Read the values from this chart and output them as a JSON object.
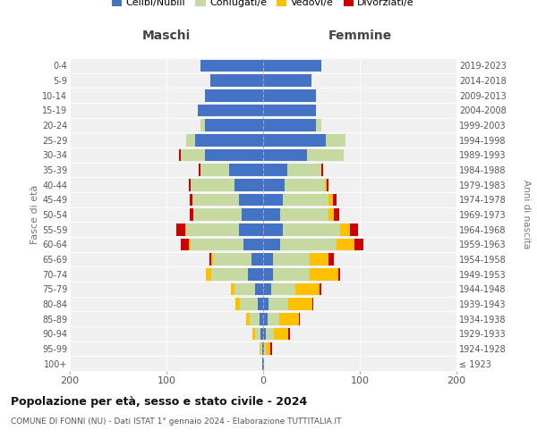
{
  "age_groups": [
    "100+",
    "95-99",
    "90-94",
    "85-89",
    "80-84",
    "75-79",
    "70-74",
    "65-69",
    "60-64",
    "55-59",
    "50-54",
    "45-49",
    "40-44",
    "35-39",
    "30-34",
    "25-29",
    "20-24",
    "15-19",
    "10-14",
    "5-9",
    "0-4"
  ],
  "birth_years": [
    "≤ 1923",
    "1924-1928",
    "1929-1933",
    "1934-1938",
    "1939-1943",
    "1944-1948",
    "1949-1953",
    "1954-1958",
    "1959-1963",
    "1964-1968",
    "1969-1973",
    "1974-1978",
    "1979-1983",
    "1984-1988",
    "1989-1993",
    "1994-1998",
    "1999-2003",
    "2004-2008",
    "2009-2013",
    "2014-2018",
    "2019-2023"
  ],
  "maschi": {
    "celibi": [
      1,
      1,
      3,
      4,
      6,
      8,
      16,
      12,
      20,
      25,
      22,
      25,
      30,
      35,
      60,
      70,
      60,
      68,
      60,
      55,
      65
    ],
    "coniugati": [
      0,
      2,
      5,
      10,
      18,
      22,
      38,
      40,
      55,
      55,
      50,
      48,
      45,
      30,
      25,
      10,
      5,
      0,
      0,
      0,
      0
    ],
    "vedovi": [
      0,
      1,
      3,
      4,
      5,
      3,
      5,
      2,
      2,
      1,
      0,
      0,
      0,
      0,
      0,
      0,
      0,
      0,
      0,
      0,
      0
    ],
    "divorziati": [
      0,
      0,
      0,
      0,
      0,
      0,
      0,
      2,
      8,
      9,
      4,
      3,
      2,
      2,
      2,
      0,
      0,
      0,
      0,
      0,
      0
    ]
  },
  "femmine": {
    "nubili": [
      1,
      1,
      3,
      5,
      6,
      8,
      10,
      10,
      18,
      20,
      18,
      20,
      22,
      25,
      45,
      65,
      55,
      55,
      55,
      50,
      60
    ],
    "coniugate": [
      0,
      2,
      8,
      12,
      20,
      25,
      38,
      38,
      58,
      60,
      50,
      48,
      42,
      35,
      38,
      20,
      5,
      0,
      0,
      0,
      0
    ],
    "vedove": [
      0,
      4,
      15,
      20,
      25,
      25,
      30,
      20,
      18,
      10,
      5,
      4,
      2,
      0,
      0,
      0,
      0,
      0,
      0,
      0,
      0
    ],
    "divorziate": [
      0,
      2,
      2,
      1,
      1,
      2,
      2,
      5,
      10,
      8,
      6,
      4,
      2,
      2,
      0,
      0,
      0,
      0,
      0,
      0,
      0
    ]
  },
  "colors": {
    "celibi": "#4472c4",
    "coniugati": "#c5d9a0",
    "vedovi": "#ffc000",
    "divorziati": "#cc0000"
  },
  "title": "Popolazione per età, sesso e stato civile - 2024",
  "subtitle": "COMUNE DI FONNI (NU) - Dati ISTAT 1° gennaio 2024 - Elaborazione TUTTITALIA.IT",
  "xlabel_maschi": "Maschi",
  "xlabel_femmine": "Femmine",
  "ylabel_left": "Fasce di età",
  "ylabel_right": "Anni di nascita",
  "xlim": 200,
  "bg_color": "#ffffff",
  "plot_bg_color": "#f0f0f0",
  "grid_color": "#cccccc"
}
